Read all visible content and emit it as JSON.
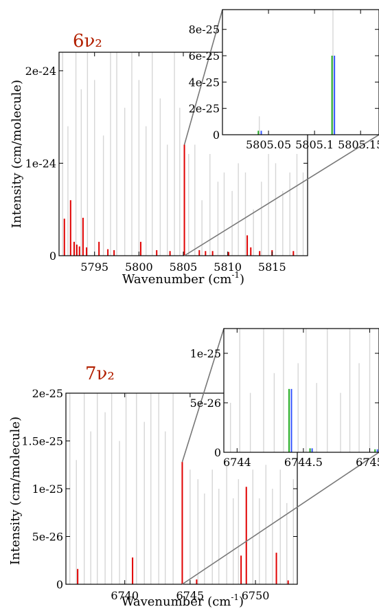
{
  "colors": {
    "background_lines": "#d6d6d6",
    "highlight": "#e00000",
    "label": "#b22000",
    "green": "#22aa22",
    "blue": "#3355ff"
  },
  "chart_data": [
    {
      "id": "main1",
      "type": "bar",
      "band_label": "6ν₂",
      "xlabel": "Wavenumber (cm⁻¹)",
      "ylabel": "Intensity (cm/molecule)",
      "xlim": [
        5791,
        5819
      ],
      "ylim": [
        0,
        2.2e-24
      ],
      "xticks": [
        {
          "v": 5795,
          "label": "5795"
        },
        {
          "v": 5800,
          "label": "5800"
        },
        {
          "v": 5805,
          "label": "5805"
        },
        {
          "v": 5810,
          "label": "5810"
        },
        {
          "v": 5815,
          "label": "5815"
        }
      ],
      "yticks": [
        {
          "v": 0,
          "label": "0"
        },
        {
          "v": 1e-24,
          "label": "1e-24"
        },
        {
          "v": 2e-24,
          "label": "2e-24"
        }
      ],
      "red_lines": [
        [
          5791.6,
          4e-25
        ],
        [
          5792.3,
          6e-25
        ],
        [
          5792.7,
          1.5e-25
        ],
        [
          5793.0,
          1.2e-25
        ],
        [
          5793.3,
          1e-25
        ],
        [
          5793.7,
          4.1e-25
        ],
        [
          5794.1,
          9e-26
        ],
        [
          5795.5,
          1.5e-25
        ],
        [
          5796.5,
          7e-26
        ],
        [
          5797.2,
          6e-26
        ],
        [
          5800.2,
          1.5e-25
        ],
        [
          5802.0,
          6e-26
        ],
        [
          5803.5,
          5e-26
        ],
        [
          5805.12,
          1.2e-24
        ],
        [
          5806.8,
          6e-26
        ],
        [
          5807.5,
          5e-26
        ],
        [
          5808.3,
          5e-26
        ],
        [
          5810.1,
          4e-26
        ],
        [
          5812.2,
          2.2e-25
        ],
        [
          5812.6,
          9e-26
        ],
        [
          5813.6,
          5e-26
        ],
        [
          5815.0,
          6e-26
        ],
        [
          5817.4,
          5e-26
        ]
      ],
      "grey_lines": [
        [
          5791.4,
          2.2e-24
        ],
        [
          5792.0,
          1.4e-24
        ],
        [
          5792.9,
          2.2e-24
        ],
        [
          5793.5,
          1.8e-24
        ],
        [
          5794.2,
          2.2e-24
        ],
        [
          5795.0,
          1.9e-24
        ],
        [
          5796.0,
          1.3e-24
        ],
        [
          5796.8,
          2.2e-24
        ],
        [
          5797.5,
          2.2e-24
        ],
        [
          5798.4,
          1.6e-24
        ],
        [
          5799.2,
          2.2e-24
        ],
        [
          5800.0,
          1.9e-24
        ],
        [
          5800.8,
          1.4e-24
        ],
        [
          5801.5,
          2.2e-24
        ],
        [
          5802.4,
          1.7e-24
        ],
        [
          5803.2,
          1.2e-24
        ],
        [
          5804.0,
          2.2e-24
        ],
        [
          5804.6,
          1.6e-24
        ],
        [
          5805.6,
          1.1e-24
        ],
        [
          5806.3,
          1.2e-24
        ],
        [
          5807.1,
          6e-25
        ],
        [
          5808.0,
          1.1e-24
        ],
        [
          5808.9,
          8e-25
        ],
        [
          5809.6,
          9e-25
        ],
        [
          5810.5,
          7e-25
        ],
        [
          5811.2,
          1e-24
        ],
        [
          5812.0,
          9e-25
        ],
        [
          5812.9,
          5e-25
        ],
        [
          5813.8,
          8e-25
        ],
        [
          5814.6,
          1.1e-24
        ],
        [
          5815.4,
          1e-24
        ],
        [
          5816.2,
          7e-25
        ],
        [
          5817.0,
          9e-25
        ],
        [
          5817.8,
          1.1e-24
        ],
        [
          5818.5,
          9e-25
        ]
      ]
    },
    {
      "id": "inset1",
      "type": "bar",
      "xlim": [
        5805.0,
        5805.17
      ],
      "ylim": [
        0,
        9.5e-25
      ],
      "xticks": [
        {
          "v": 5805.05,
          "label": "5805.05"
        },
        {
          "v": 5805.1,
          "label": "5805.1"
        },
        {
          "v": 5805.15,
          "label": "5805.15"
        }
      ],
      "yticks": [
        {
          "v": 0,
          "label": "0"
        },
        {
          "v": 2e-25,
          "label": "2e-25"
        },
        {
          "v": 4e-25,
          "label": "4e-25"
        },
        {
          "v": 6e-25,
          "label": "6e-25"
        },
        {
          "v": 8e-25,
          "label": "8e-25"
        }
      ],
      "green_lines": [
        [
          5805.039,
          3e-26
        ],
        [
          5805.119,
          6e-25
        ]
      ],
      "blue_lines": [
        [
          5805.041,
          3e-26
        ],
        [
          5805.1205,
          6e-25
        ]
      ],
      "grey_lines": [
        [
          5805.04,
          1.4e-25
        ],
        [
          5805.12,
          9.5e-25
        ]
      ]
    },
    {
      "id": "main2",
      "type": "bar",
      "band_label": "7ν₂",
      "xlabel": "Wavenumber (cm⁻¹)",
      "ylabel": "Intensity (cm/molecule)",
      "xlim": [
        6735.5,
        6753.2
      ],
      "ylim": [
        0,
        2e-25
      ],
      "xticks": [
        {
          "v": 6740,
          "label": "6740"
        },
        {
          "v": 6745,
          "label": "6745"
        },
        {
          "v": 6750,
          "label": "6750"
        }
      ],
      "yticks": [
        {
          "v": 0,
          "label": "0"
        },
        {
          "v": 5e-26,
          "label": "5e-26"
        },
        {
          "v": 1e-25,
          "label": "1e-25"
        },
        {
          "v": 1.5e-25,
          "label": "1.5e-25"
        },
        {
          "v": 2e-25,
          "label": "2e-25"
        }
      ],
      "red_lines": [
        [
          6736.4,
          1.6e-26
        ],
        [
          6740.6,
          2.8e-26
        ],
        [
          6744.4,
          1.28e-25
        ],
        [
          6745.5,
          5e-27
        ],
        [
          6748.9,
          3e-26
        ],
        [
          6749.3,
          1.02e-25
        ],
        [
          6751.6,
          3.3e-26
        ],
        [
          6752.5,
          4e-27
        ]
      ],
      "grey_lines": [
        [
          6735.8,
          2e-25
        ],
        [
          6736.3,
          1.3e-25
        ],
        [
          6736.9,
          2e-25
        ],
        [
          6737.4,
          1.6e-25
        ],
        [
          6737.9,
          2e-25
        ],
        [
          6738.5,
          1.8e-25
        ],
        [
          6739.0,
          2e-25
        ],
        [
          6739.6,
          1.5e-25
        ],
        [
          6740.1,
          2e-25
        ],
        [
          6740.9,
          2e-25
        ],
        [
          6741.5,
          1.7e-25
        ],
        [
          6742.0,
          2e-25
        ],
        [
          6742.6,
          2e-25
        ],
        [
          6743.1,
          1.6e-25
        ],
        [
          6743.7,
          2e-25
        ],
        [
          6745.0,
          1.2e-25
        ],
        [
          6745.6,
          1.1e-25
        ],
        [
          6746.1,
          9.5e-26
        ],
        [
          6746.7,
          1.2e-25
        ],
        [
          6747.2,
          1e-25
        ],
        [
          6747.8,
          1.25e-25
        ],
        [
          6748.3,
          9e-26
        ],
        [
          6748.7,
          1.1e-25
        ],
        [
          6749.8,
          1.2e-25
        ],
        [
          6750.3,
          9e-26
        ],
        [
          6750.8,
          1.25e-25
        ],
        [
          6751.3,
          1e-25
        ],
        [
          6751.9,
          1.2e-25
        ],
        [
          6752.4,
          8.5e-26
        ],
        [
          6752.9,
          1.1e-25
        ]
      ]
    },
    {
      "id": "inset2",
      "type": "bar",
      "xlim": [
        6743.9,
        6745.07
      ],
      "ylim": [
        0,
        1.25e-25
      ],
      "xticks": [
        {
          "v": 6744,
          "label": "6744"
        },
        {
          "v": 6744.5,
          "label": "6744.5"
        },
        {
          "v": 6745,
          "label": "6745"
        }
      ],
      "yticks": [
        {
          "v": 0,
          "label": "0"
        },
        {
          "v": 5e-26,
          "label": "5e-26"
        },
        {
          "v": 1e-25,
          "label": "1e-25"
        }
      ],
      "green_lines": [
        [
          6744.392,
          6.4e-26
        ],
        [
          6744.55,
          4e-27
        ],
        [
          6745.04,
          3e-27
        ]
      ],
      "blue_lines": [
        [
          6744.402,
          6.4e-26
        ],
        [
          6744.558,
          4e-27
        ],
        [
          6745.05,
          3e-27
        ]
      ],
      "grey_lines": [
        [
          6743.95,
          5e-26
        ],
        [
          6744.02,
          1.25e-25
        ],
        [
          6744.1,
          6e-26
        ],
        [
          6744.2,
          1.25e-25
        ],
        [
          6744.28,
          8e-26
        ],
        [
          6744.35,
          1.25e-25
        ],
        [
          6744.46,
          9e-26
        ],
        [
          6744.52,
          1.25e-25
        ],
        [
          6744.6,
          7e-26
        ],
        [
          6744.68,
          1.25e-25
        ],
        [
          6744.78,
          6e-26
        ],
        [
          6744.85,
          1.25e-25
        ],
        [
          6744.92,
          9e-26
        ],
        [
          6745.0,
          1.25e-25
        ]
      ]
    }
  ]
}
